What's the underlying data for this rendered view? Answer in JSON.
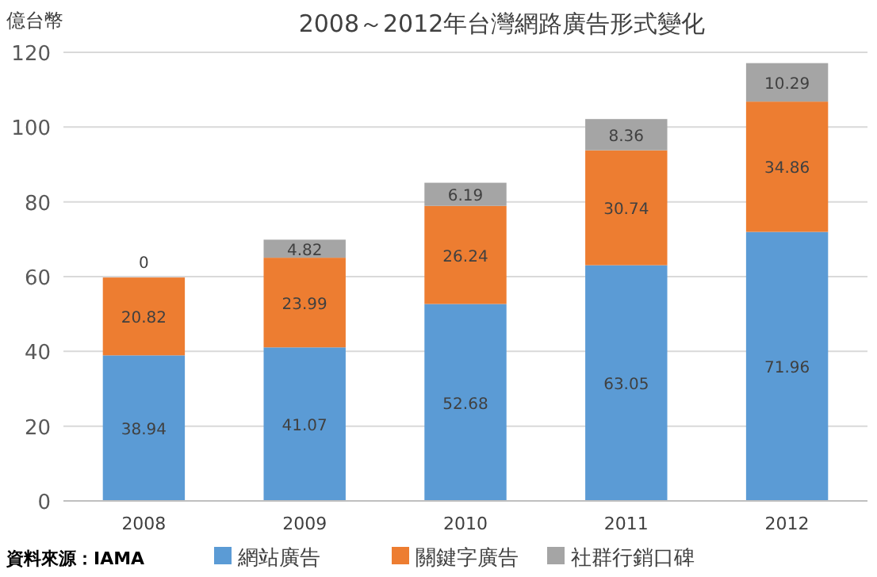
{
  "chart_data": {
    "type": "bar",
    "title": "2008～2012年台灣網路廣告形式變化",
    "ylabel": "億台幣",
    "categories": [
      "2008",
      "2009",
      "2010",
      "2011",
      "2012"
    ],
    "stacked": true,
    "data_labels": true,
    "grid": "y",
    "legend": "bottom",
    "ylim": [
      0,
      120
    ],
    "yticks": [
      0,
      20,
      40,
      60,
      80,
      100,
      120
    ],
    "annotations": [
      "資料來源：IAMA"
    ],
    "series": [
      {
        "name": "網站廣告",
        "color": "#5b9bd5",
        "values": [
          38.94,
          41.07,
          52.68,
          63.05,
          71.96
        ]
      },
      {
        "name": "關鍵字廣告",
        "color": "#ed7d31",
        "values": [
          20.82,
          23.99,
          26.24,
          30.74,
          34.86
        ]
      },
      {
        "name": "社群行銷口碑",
        "color": "#a5a5a5",
        "values": [
          0,
          4.82,
          6.19,
          8.36,
          10.29
        ]
      }
    ]
  }
}
